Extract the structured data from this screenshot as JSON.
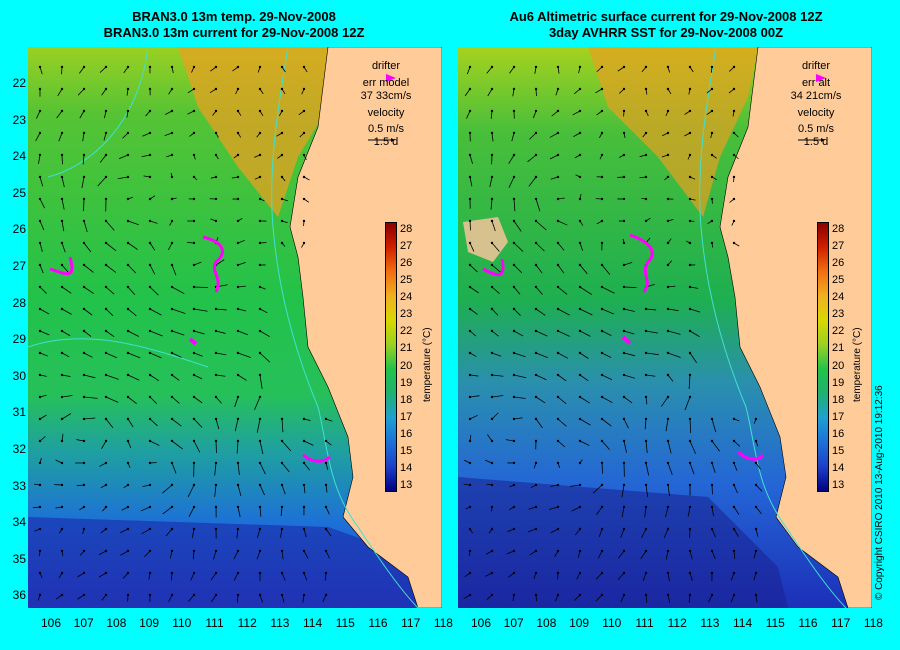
{
  "left_panel": {
    "title_line1": "BRAN3.0 13m temp. 29-Nov-2008",
    "title_line2": "BRAN3.0 13m current for 29-Nov-2008 12Z",
    "legend_drifter": "drifter",
    "legend_err_label": "err model",
    "legend_err_value": "37 33cm/s",
    "legend_velocity": "velocity",
    "legend_speed": "0.5 m/s",
    "legend_duration": "1.5 d"
  },
  "right_panel": {
    "title_line1": "Au6 Altimetric surface current for 29-Nov-2008 12Z",
    "title_line2": "3day AVHRR SST for 29-Nov-2008 00Z",
    "legend_drifter": "drifter",
    "legend_err_label": "err alt",
    "legend_err_value": "34 21cm/s",
    "legend_velocity": "velocity",
    "legend_speed": "0.5 m/s",
    "legend_duration": "1.5 d"
  },
  "latitude_labels": [
    "22",
    "23",
    "24",
    "25",
    "26",
    "27",
    "28",
    "29",
    "30",
    "31",
    "32",
    "33",
    "34",
    "35",
    "36"
  ],
  "longitude_labels": [
    "106",
    "107",
    "108",
    "109",
    "110",
    "111",
    "112",
    "113",
    "114",
    "115",
    "116",
    "117",
    "118"
  ],
  "colorbar": {
    "ticks": [
      "28",
      "27",
      "26",
      "25",
      "24",
      "23",
      "22",
      "21",
      "20",
      "19",
      "18",
      "17",
      "16",
      "15",
      "14",
      "13"
    ],
    "unit_label": "temperature (°C)"
  },
  "copyright": "© Copyright CSIRO 2010   13-Aug-2010 19:12:36",
  "colors": {
    "background": "#00ffff",
    "land": "#ffcc99",
    "drifter": "#ff00ff",
    "isobath": "#40e0d0",
    "current_vectors": "#000000"
  }
}
